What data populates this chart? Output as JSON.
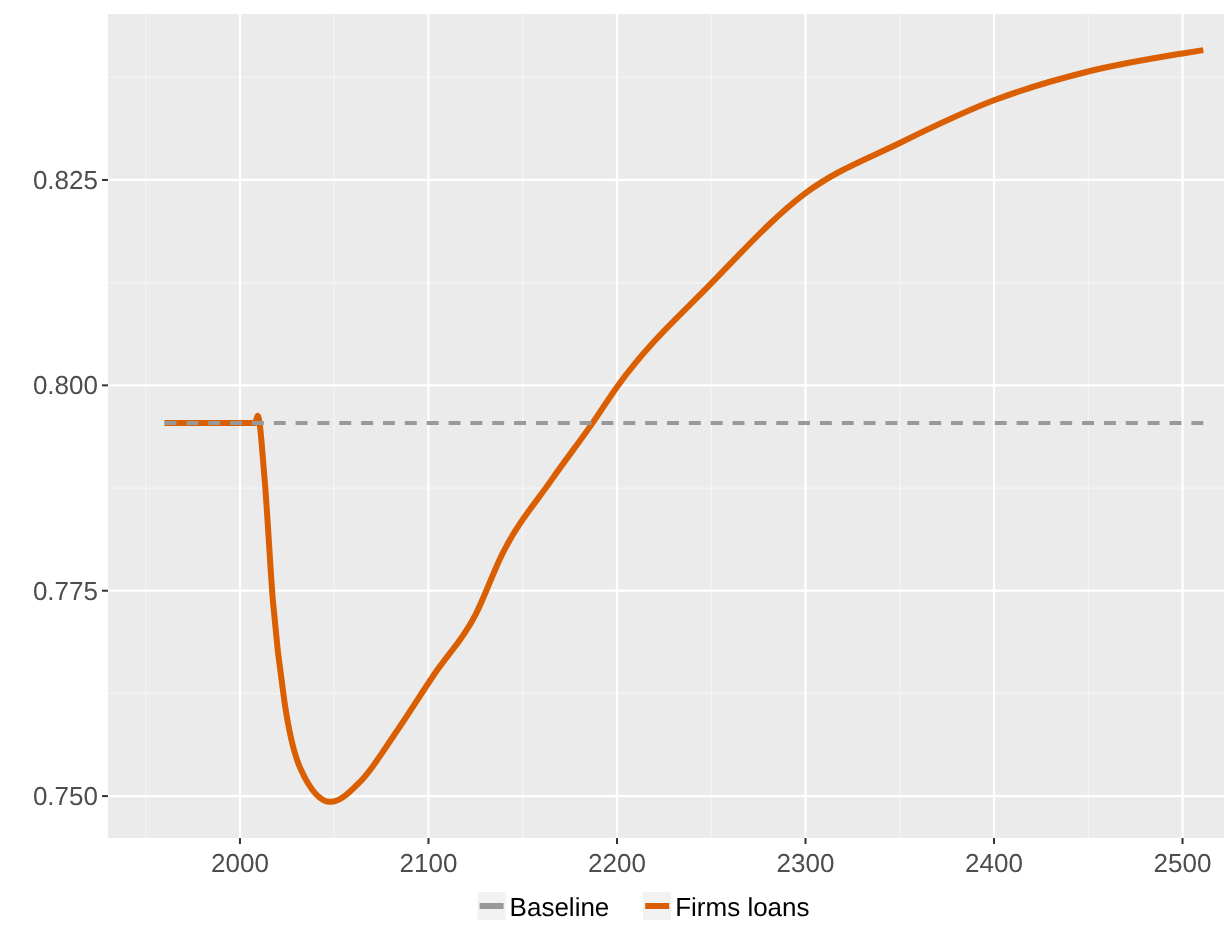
{
  "chart_data": {
    "type": "line",
    "xlim": [
      1930,
      2522
    ],
    "ylim": [
      0.7449,
      0.8452
    ],
    "xticks": [
      2000,
      2100,
      2200,
      2300,
      2400,
      2500
    ],
    "yticks": [
      {
        "value": 0.75,
        "label": "0.750"
      },
      {
        "value": 0.775,
        "label": "0.775"
      },
      {
        "value": 0.8,
        "label": "0.800"
      },
      {
        "value": 0.825,
        "label": "0.825"
      }
    ],
    "grid": true,
    "legend": "bottom",
    "marker": "none",
    "series": [
      {
        "name": "Baseline",
        "color": "#999999",
        "line_style": "dashed",
        "x": [
          1960,
          2511
        ],
        "values": [
          0.7954,
          0.7954
        ]
      },
      {
        "name": "Firms loans",
        "color": "#d95f02",
        "line_style": "solid",
        "x": [
          1960,
          2008,
          2009.4,
          2013,
          2017.5,
          2023.6,
          2032,
          2048,
          2064,
          2082,
          2103,
          2125,
          2139,
          2165,
          2187,
          2200,
          2250,
          2300,
          2350,
          2400,
          2450,
          2500,
          2511
        ],
        "values": [
          0.7954,
          0.7954,
          0.7963,
          0.7888,
          0.7737,
          0.7615,
          0.7534,
          0.7493,
          0.7518,
          0.7575,
          0.7648,
          0.7721,
          0.7794,
          0.7884,
          0.7954,
          0.7998,
          0.8124,
          0.8234,
          0.8295,
          0.8347,
          0.8382,
          0.8404,
          0.8408
        ]
      }
    ]
  }
}
